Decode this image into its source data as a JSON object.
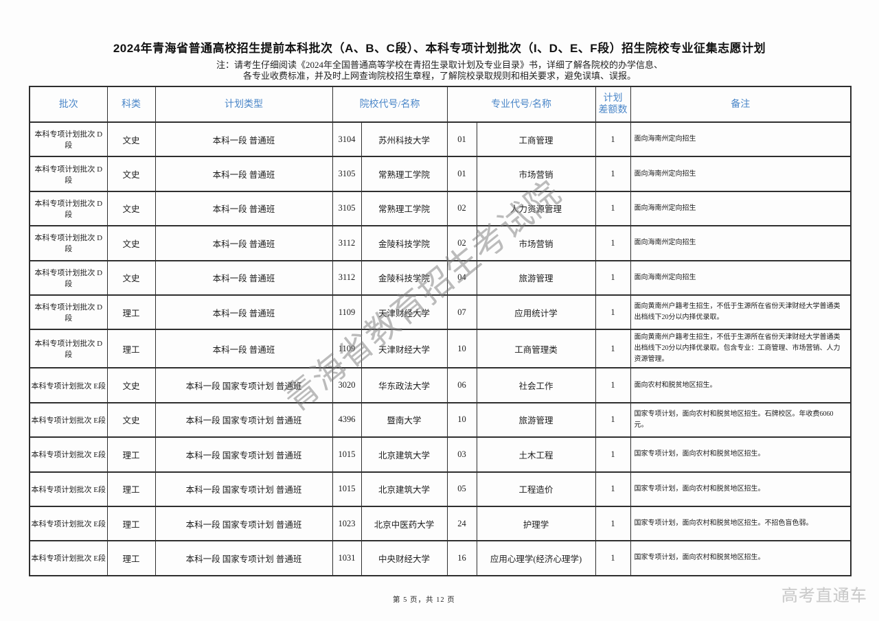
{
  "page": {
    "title": "2024年青海省普通高校招生提前本科批次（A、B、C段）、本科专项计划批次（I、D、E、F段）招生院校专业征集志愿计划",
    "note_line1": "注：请考生仔细阅读《2024年全国普通高等学校在青招生录取计划及专业目录》书，详细了解各院校的办学信息、",
    "note_line2": "各专业收费标准，并及时上网查询院校招生章程，了解院校录取规则和相关要求，避免误填、误报。",
    "watermark_text": "青海省教育招生考试院",
    "footer_page_text": "第 5 页，共 12 页",
    "brand_logo_text": "高考直通车",
    "header_text_color": "#4a86c8"
  },
  "table": {
    "headers": {
      "batch": "批次",
      "subject": "科类",
      "plan_type": "计划类型",
      "college": "院校代号/名称",
      "major": "专业代号/名称",
      "quota_line1": "计划",
      "quota_line2": "差额数",
      "remark": "备注"
    },
    "rows": [
      {
        "batch": "本科专项计划批次  D段",
        "subject": "文史",
        "plan_type": "本科一段  普通班",
        "college_code": "3104",
        "college_name": "苏州科技大学",
        "major_code": "01",
        "major_name": "工商管理",
        "quota": "1",
        "remark": "面向海南州定向招生"
      },
      {
        "batch": "本科专项计划批次  D段",
        "subject": "文史",
        "plan_type": "本科一段  普通班",
        "college_code": "3105",
        "college_name": "常熟理工学院",
        "major_code": "01",
        "major_name": "市场营销",
        "quota": "1",
        "remark": "面向海南州定向招生"
      },
      {
        "batch": "本科专项计划批次  D段",
        "subject": "文史",
        "plan_type": "本科一段  普通班",
        "college_code": "3105",
        "college_name": "常熟理工学院",
        "major_code": "02",
        "major_name": "人力资源管理",
        "quota": "1",
        "remark": "面向海南州定向招生"
      },
      {
        "batch": "本科专项计划批次  D段",
        "subject": "文史",
        "plan_type": "本科一段  普通班",
        "college_code": "3112",
        "college_name": "金陵科技学院",
        "major_code": "02",
        "major_name": "市场营销",
        "quota": "1",
        "remark": "面向海南州定向招生"
      },
      {
        "batch": "本科专项计划批次  D段",
        "subject": "文史",
        "plan_type": "本科一段  普通班",
        "college_code": "3112",
        "college_name": "金陵科技学院",
        "major_code": "04",
        "major_name": "旅游管理",
        "quota": "1",
        "remark": "面向海南州定向招生"
      },
      {
        "batch": "本科专项计划批次  D段",
        "subject": "理工",
        "plan_type": "本科一段  普通班",
        "college_code": "1109",
        "college_name": "天津财经大学",
        "major_code": "07",
        "major_name": "应用统计学",
        "quota": "1",
        "remark": "面向黄南州户籍考生招生，不低于生源所在省份天津财经大学普通类出档线下20分以内择优录取。"
      },
      {
        "batch": "本科专项计划批次  D段",
        "subject": "理工",
        "plan_type": "本科一段  普通班",
        "college_code": "1109",
        "college_name": "天津财经大学",
        "major_code": "10",
        "major_name": "工商管理类",
        "quota": "1",
        "remark": "面向黄南州户籍考生招生，不低于生源所在省份天津财经大学普通类出档线下20分以内择优录取。包含专业：工商管理、市场营销、人力资源管理。"
      },
      {
        "batch": "本科专项计划批次  E段",
        "subject": "文史",
        "plan_type": "本科一段  国家专项计划  普通班",
        "college_code": "3020",
        "college_name": "华东政法大学",
        "major_code": "06",
        "major_name": "社会工作",
        "quota": "1",
        "remark": "面向农村和脱贫地区招生。"
      },
      {
        "batch": "本科专项计划批次  E段",
        "subject": "文史",
        "plan_type": "本科一段  国家专项计划  普通班",
        "college_code": "4396",
        "college_name": "暨南大学",
        "major_code": "10",
        "major_name": "旅游管理",
        "quota": "1",
        "remark": "国家专项计划，面向农村和脱贫地区招生。石牌校区。年收费6060元。"
      },
      {
        "batch": "本科专项计划批次  E段",
        "subject": "理工",
        "plan_type": "本科一段  国家专项计划  普通班",
        "college_code": "1015",
        "college_name": "北京建筑大学",
        "major_code": "03",
        "major_name": "土木工程",
        "quota": "1",
        "remark": "国家专项计划，面向农村和脱贫地区招生。"
      },
      {
        "batch": "本科专项计划批次  E段",
        "subject": "理工",
        "plan_type": "本科一段  国家专项计划  普通班",
        "college_code": "1015",
        "college_name": "北京建筑大学",
        "major_code": "05",
        "major_name": "工程造价",
        "quota": "1",
        "remark": "国家专项计划，面向农村和脱贫地区招生。"
      },
      {
        "batch": "本科专项计划批次  E段",
        "subject": "理工",
        "plan_type": "本科一段  国家专项计划  普通班",
        "college_code": "1023",
        "college_name": "北京中医药大学",
        "major_code": "24",
        "major_name": "护理学",
        "quota": "1",
        "remark": "国家专项计划，面向农村和脱贫地区招生。不招色盲色弱。"
      },
      {
        "batch": "本科专项计划批次  E段",
        "subject": "理工",
        "plan_type": "本科一段  国家专项计划  普通班",
        "college_code": "1031",
        "college_name": "中央财经大学",
        "major_code": "16",
        "major_name": "应用心理学(经济心理学)",
        "quota": "1",
        "remark": "国家专项计划，面向农村和脱贫地区招生。"
      }
    ]
  }
}
